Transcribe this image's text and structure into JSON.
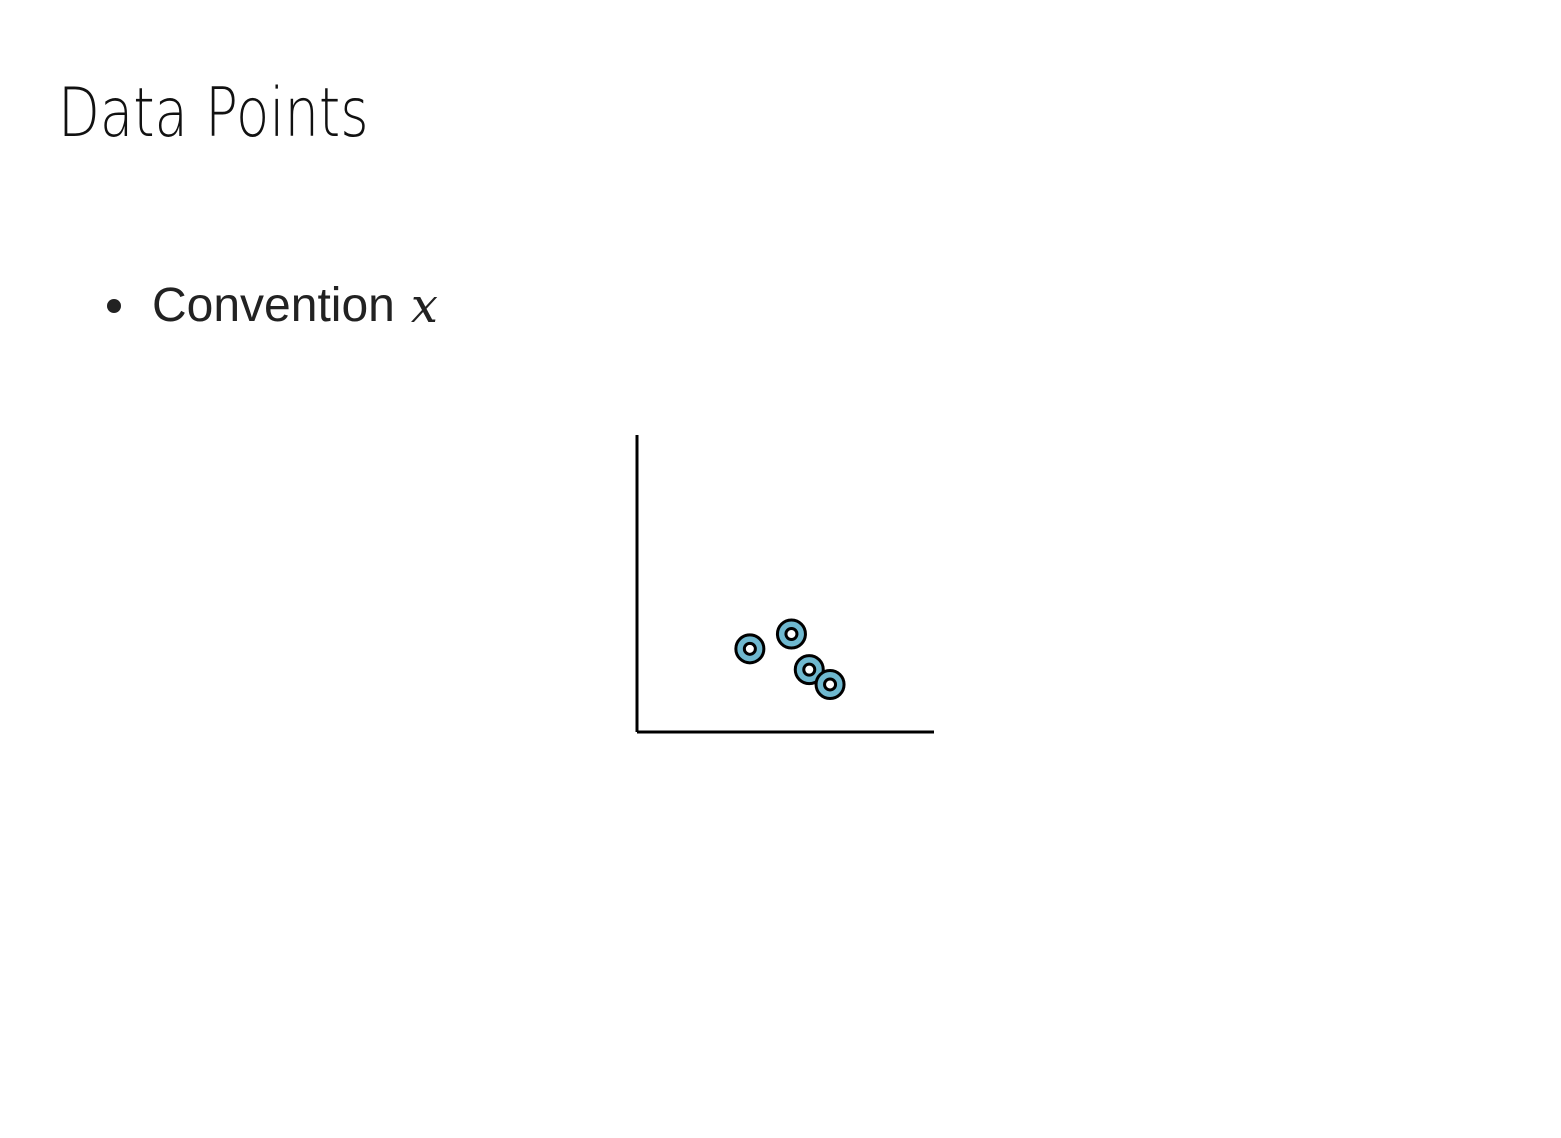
{
  "slide": {
    "title": "Data Points",
    "bullets": [
      {
        "text": "Convention",
        "math": "x"
      }
    ]
  },
  "colors": {
    "point_fill": "#6fb8cf",
    "point_stroke": "#000000",
    "point_center": "#ffffff",
    "axis": "#000000"
  },
  "chart_data": {
    "type": "scatter",
    "title": "",
    "xlabel": "",
    "ylabel": "",
    "xlim": [
      0,
      1
    ],
    "ylim": [
      0,
      1
    ],
    "grid": false,
    "series": [
      {
        "points": [
          {
            "x": 0.38,
            "y": 0.28
          },
          {
            "x": 0.52,
            "y": 0.33
          },
          {
            "x": 0.58,
            "y": 0.21
          },
          {
            "x": 0.65,
            "y": 0.16
          }
        ]
      }
    ]
  }
}
